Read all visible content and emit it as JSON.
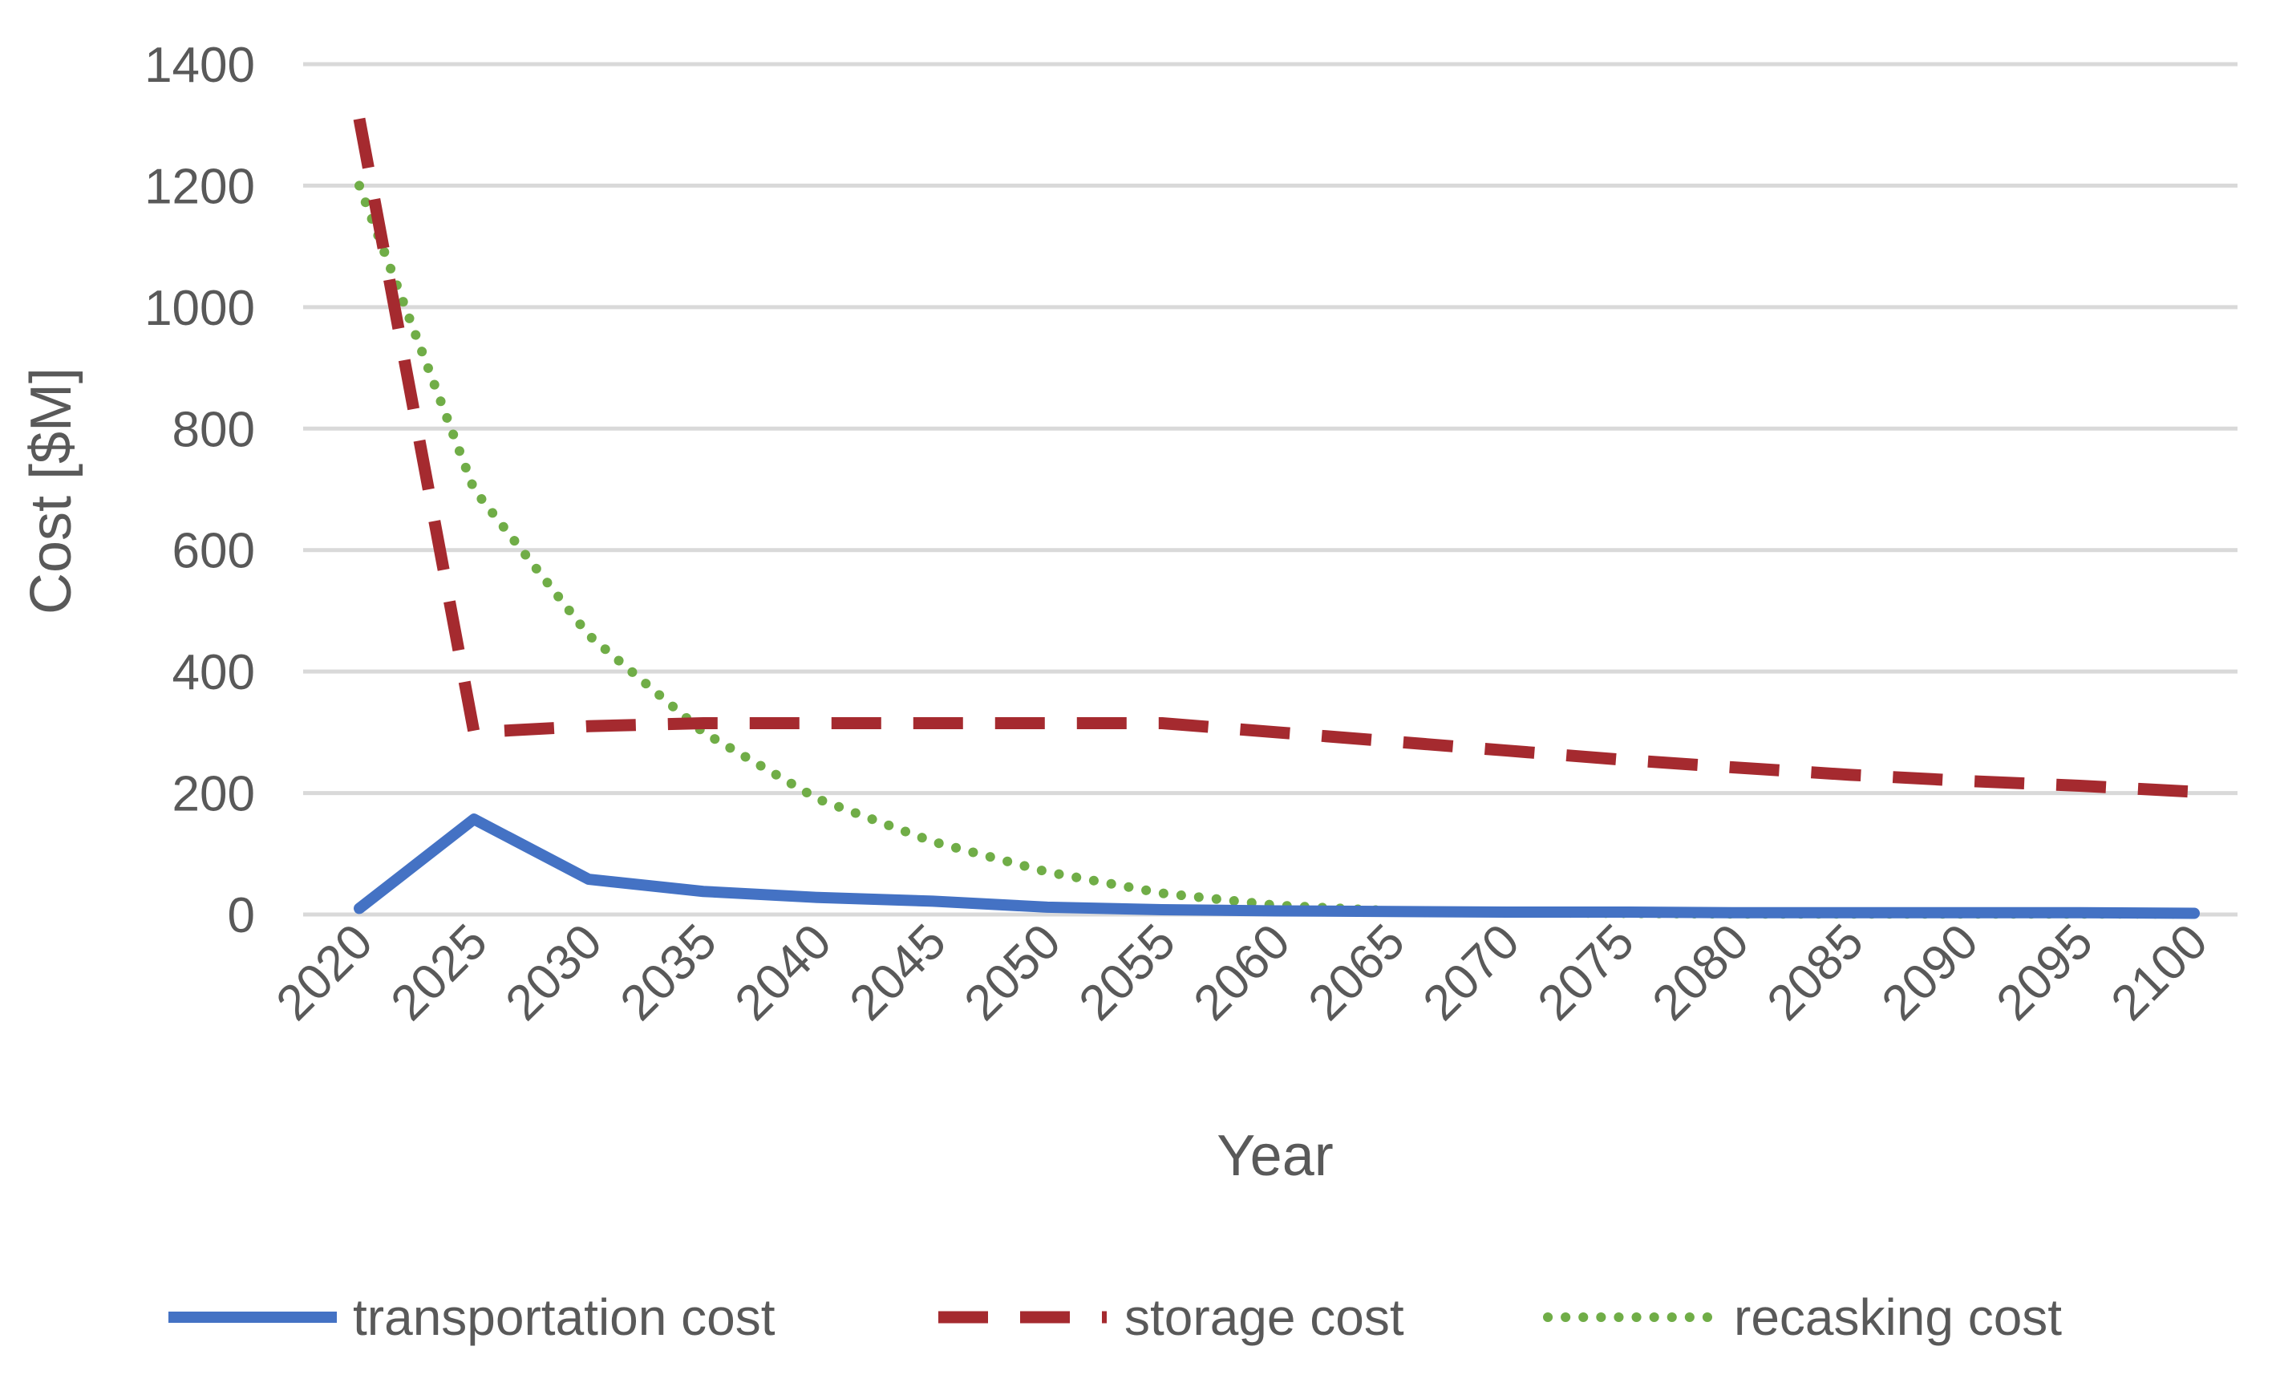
{
  "chart_data": {
    "type": "line",
    "title": "",
    "xlabel": "Year",
    "ylabel": "Cost [$M]",
    "categories": [
      "2020",
      "2025",
      "2030",
      "2035",
      "2040",
      "2045",
      "2050",
      "2055",
      "2060",
      "2065",
      "2070",
      "2075",
      "2080",
      "2085",
      "2090",
      "2095",
      "2100"
    ],
    "ylim": [
      0,
      1400
    ],
    "yticks": [
      0,
      200,
      400,
      600,
      800,
      1000,
      1200,
      1400
    ],
    "grid": true,
    "legend_position": "bottom",
    "series": [
      {
        "name": "transportation cost",
        "style": "solid",
        "color": "#4472C4",
        "values": [
          10,
          157,
          58,
          38,
          28,
          22,
          12,
          8,
          6,
          5,
          4,
          4,
          3,
          3,
          3,
          3,
          2
        ]
      },
      {
        "name": "storage cost",
        "style": "dashed",
        "color": "#A52A2F",
        "values": [
          1310,
          300,
          310,
          315,
          315,
          315,
          315,
          315,
          300,
          285,
          270,
          255,
          242,
          230,
          220,
          212,
          202
        ]
      },
      {
        "name": "recasking cost",
        "style": "dotted",
        "color": "#70AD47",
        "values": [
          1200,
          700,
          460,
          300,
          190,
          120,
          70,
          35,
          15,
          6,
          3,
          2,
          1,
          1,
          1,
          1,
          1
        ]
      }
    ]
  }
}
